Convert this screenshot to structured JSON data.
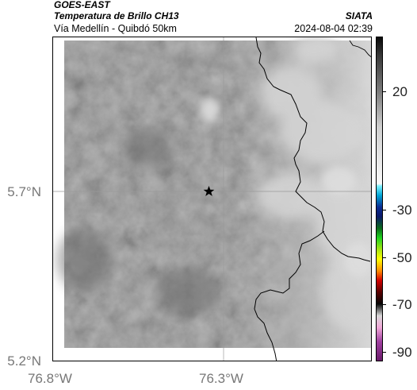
{
  "header": {
    "source": "GOES-EAST",
    "product": "Temperatura de Brillo CH13",
    "organization": "SIATA",
    "region": "Vía Medellín - Quibdó 50km",
    "timestamp": "2024-08-04 02:39"
  },
  "map": {
    "latitude_labels": [
      "5.7°N",
      "5.2°N"
    ],
    "longitude_labels": [
      "76.8°W",
      "76.3°W"
    ],
    "marker": "star",
    "imagery": "grayscale brightness temperature, brighter cloud tops to the east",
    "colors": {
      "frame": "#000000",
      "gridline": "#9a9a9a",
      "coastline": "#000000"
    }
  },
  "colorbar": {
    "tick_labels": [
      "20",
      "-30",
      "-50",
      "-70",
      "-90"
    ],
    "tick_values": [
      20,
      -30,
      -50,
      -70,
      -90
    ],
    "range": [
      -94,
      43
    ],
    "gradient": [
      {
        "v": 43,
        "c": "#0a0a0a"
      },
      {
        "v": 35,
        "c": "#3a3a3a"
      },
      {
        "v": 20,
        "c": "#7c7c7c"
      },
      {
        "v": 5,
        "c": "#cfcfcf"
      },
      {
        "v": -19,
        "c": "#fafafa"
      },
      {
        "v": -20,
        "c": "#7ef2ff"
      },
      {
        "v": -24,
        "c": "#00a6d6"
      },
      {
        "v": -29,
        "c": "#0a2b92"
      },
      {
        "v": -33,
        "c": "#0a1a6a"
      },
      {
        "v": -38,
        "c": "#0a6a1a"
      },
      {
        "v": -42,
        "c": "#1ed21e"
      },
      {
        "v": -47,
        "c": "#a8e614"
      },
      {
        "v": -51,
        "c": "#ffff00"
      },
      {
        "v": -56,
        "c": "#ff8c00"
      },
      {
        "v": -60,
        "c": "#d40000"
      },
      {
        "v": -65,
        "c": "#5a0000"
      },
      {
        "v": -70,
        "c": "#050505"
      },
      {
        "v": -75,
        "c": "#d8d8d8"
      },
      {
        "v": -80,
        "c": "#f0a8d8"
      },
      {
        "v": -86,
        "c": "#a040a0"
      },
      {
        "v": -94,
        "c": "#6a1a6a"
      }
    ]
  }
}
